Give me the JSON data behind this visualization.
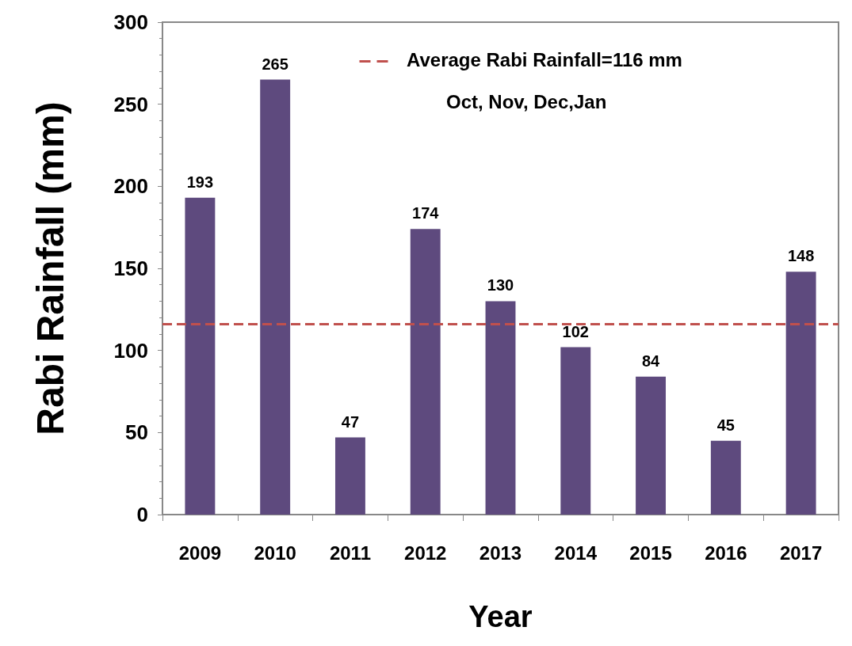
{
  "chart_data": {
    "type": "bar",
    "xlabel": "Year",
    "ylabel": "Rabi Rainfall (mm)",
    "categories": [
      "2009",
      "2010",
      "2011",
      "2012",
      "2013",
      "2014",
      "2015",
      "2016",
      "2017"
    ],
    "values": [
      193,
      265,
      47,
      174,
      130,
      102,
      84,
      45,
      148
    ],
    "color": "#5e4a7e",
    "ylim": [
      0,
      300
    ],
    "yticks": [
      0,
      50,
      100,
      150,
      200,
      250,
      300
    ],
    "grid": false,
    "data_labels": true,
    "ref_lines": [
      {
        "axis": "y",
        "value": 116,
        "label": "Average Rabi Rainfall=116 mm",
        "color": "#c0504d",
        "line_style": "dashed"
      }
    ],
    "annotations": [
      "Oct, Nov, Dec,Jan"
    ]
  }
}
